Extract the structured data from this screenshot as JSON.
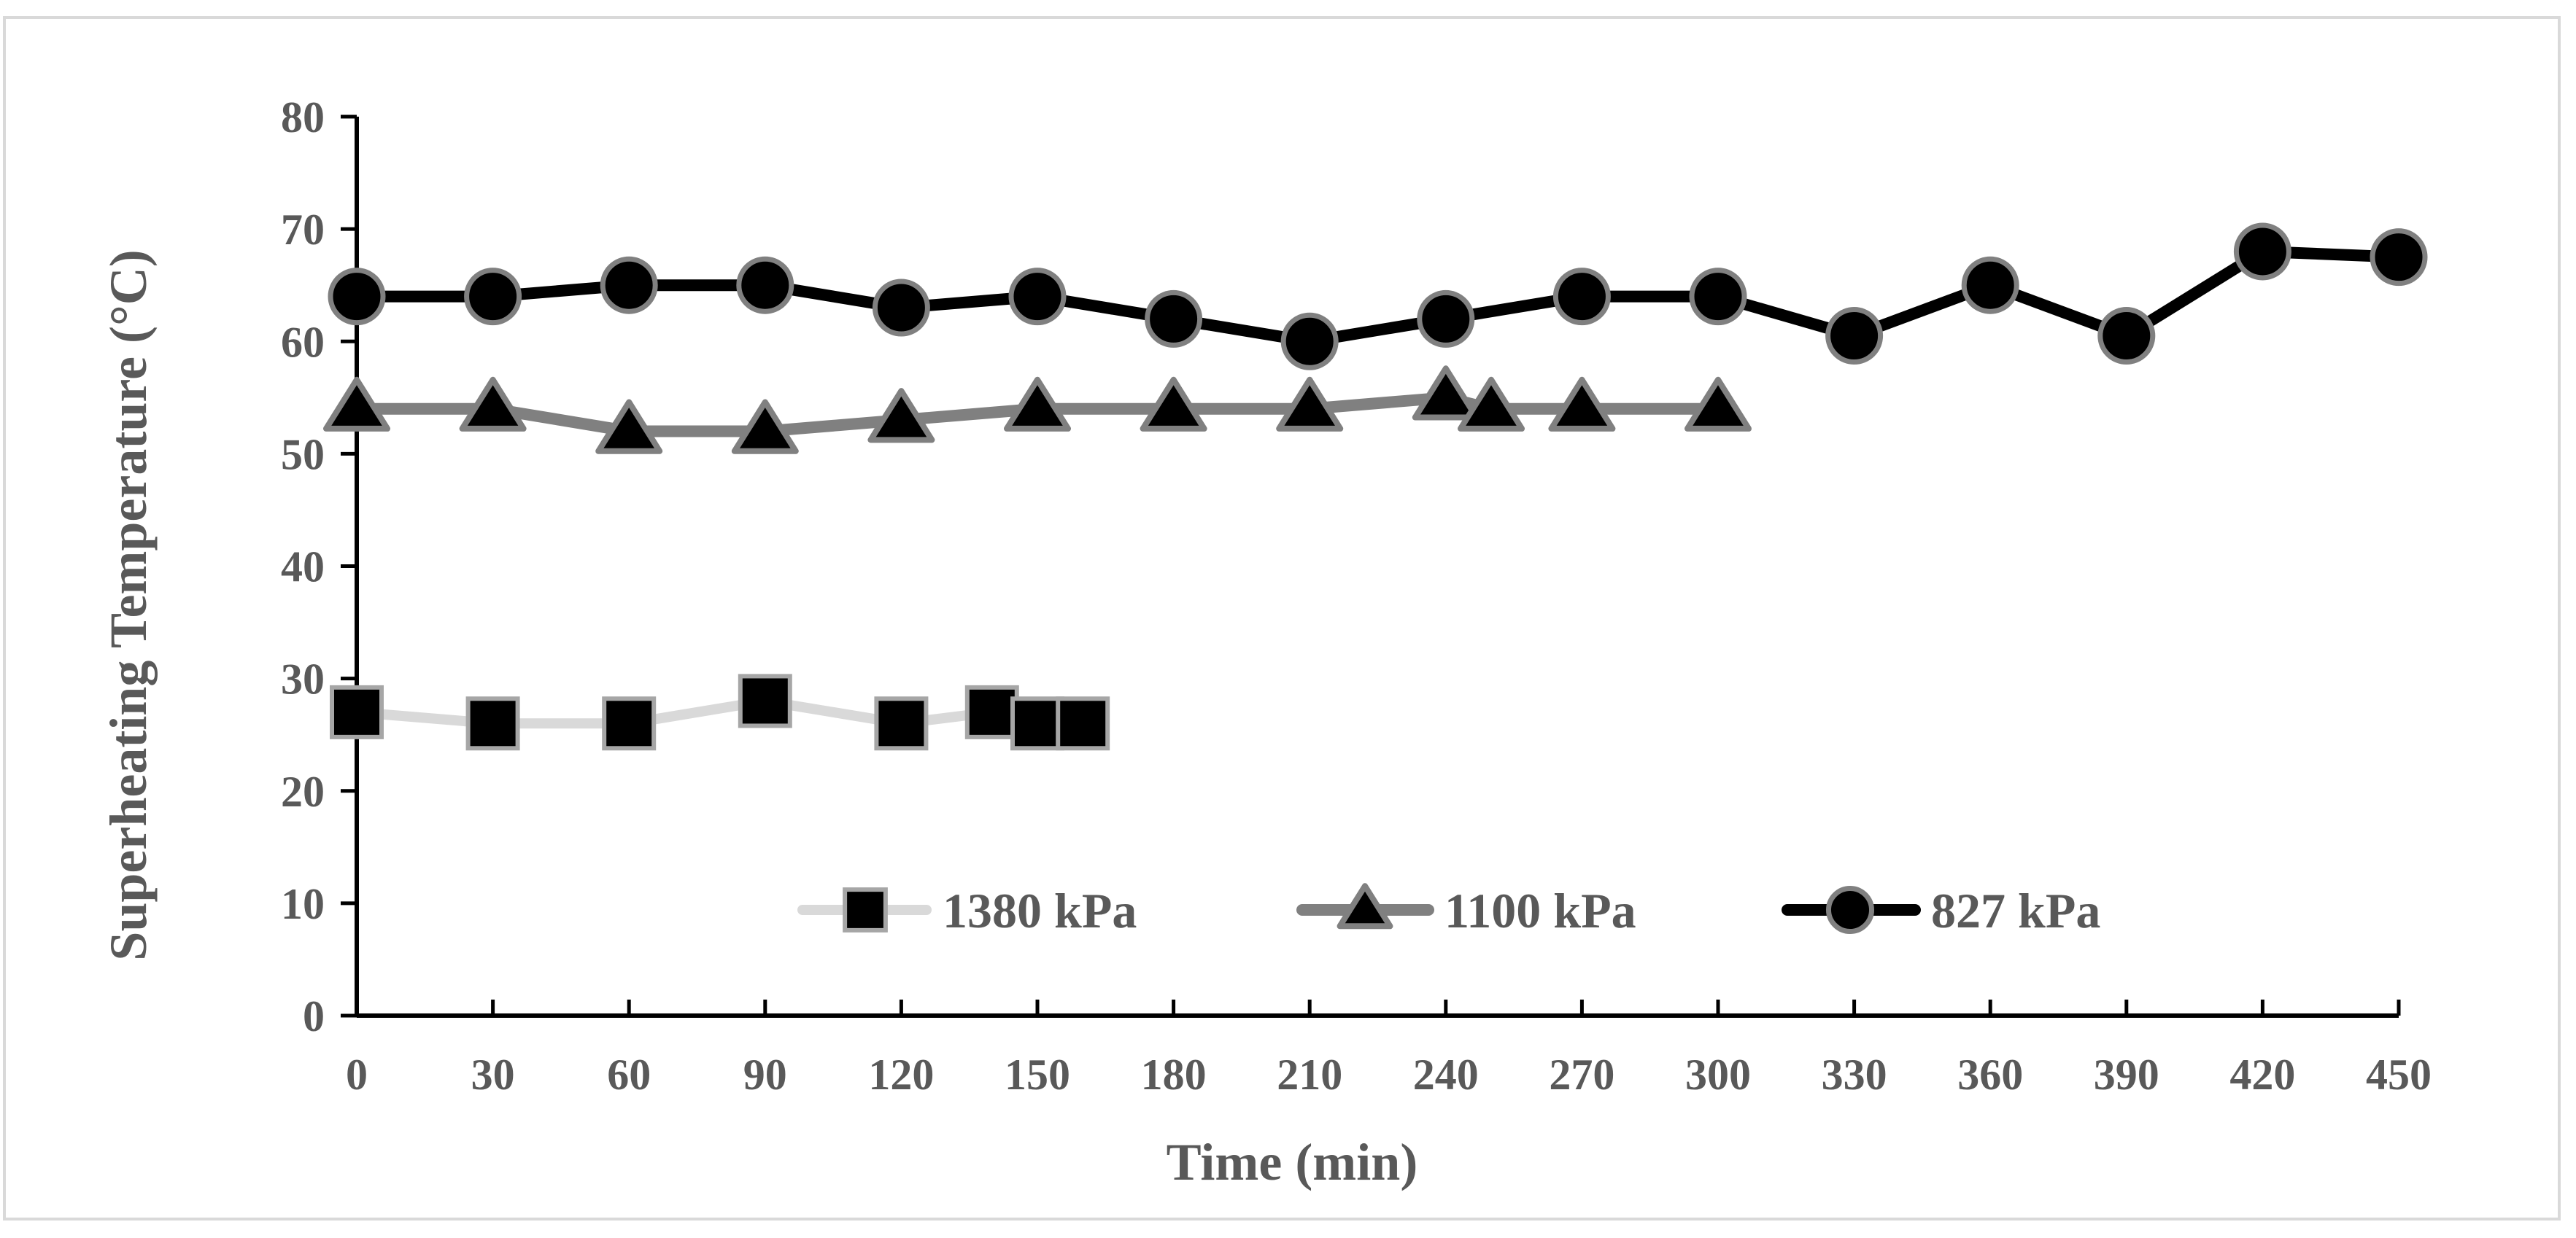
{
  "chart_data": {
    "type": "line",
    "title": "",
    "xlabel": "Time (min)",
    "ylabel": "Superheating Temperature (°C)",
    "xlim": [
      0,
      450
    ],
    "ylim": [
      0,
      80
    ],
    "x_ticks": [
      0,
      30,
      60,
      90,
      120,
      150,
      180,
      210,
      240,
      270,
      300,
      330,
      360,
      390,
      420,
      450
    ],
    "y_ticks": [
      0,
      10,
      20,
      30,
      40,
      50,
      60,
      70,
      80
    ],
    "grid": false,
    "legend_position": "bottom-center",
    "series": [
      {
        "name": "1380 kPa",
        "marker": "square",
        "line_color": "#d9d9d9",
        "marker_fill": "#000000",
        "marker_edge": "#a6a6a6",
        "x": [
          0,
          30,
          60,
          90,
          120,
          140,
          150,
          160
        ],
        "y": [
          27,
          26,
          26,
          28,
          26,
          27,
          26,
          26
        ]
      },
      {
        "name": "1100 kPa",
        "marker": "triangle",
        "line_color": "#808080",
        "marker_fill": "#000000",
        "marker_edge": "#808080",
        "x": [
          0,
          30,
          60,
          90,
          120,
          150,
          180,
          210,
          240,
          250,
          270,
          300
        ],
        "y": [
          54,
          54,
          52,
          52,
          53,
          54,
          54,
          54,
          55,
          54,
          54,
          54
        ]
      },
      {
        "name": "827 kPa",
        "marker": "circle",
        "line_color": "#000000",
        "marker_fill": "#000000",
        "marker_edge": "#808080",
        "x": [
          0,
          30,
          60,
          90,
          120,
          150,
          180,
          210,
          240,
          270,
          300,
          330,
          360,
          390,
          420,
          450
        ],
        "y": [
          64,
          64,
          65,
          65,
          63,
          64,
          62,
          60,
          62,
          64,
          64,
          60.5,
          65,
          60.5,
          68,
          67.5
        ]
      }
    ]
  }
}
